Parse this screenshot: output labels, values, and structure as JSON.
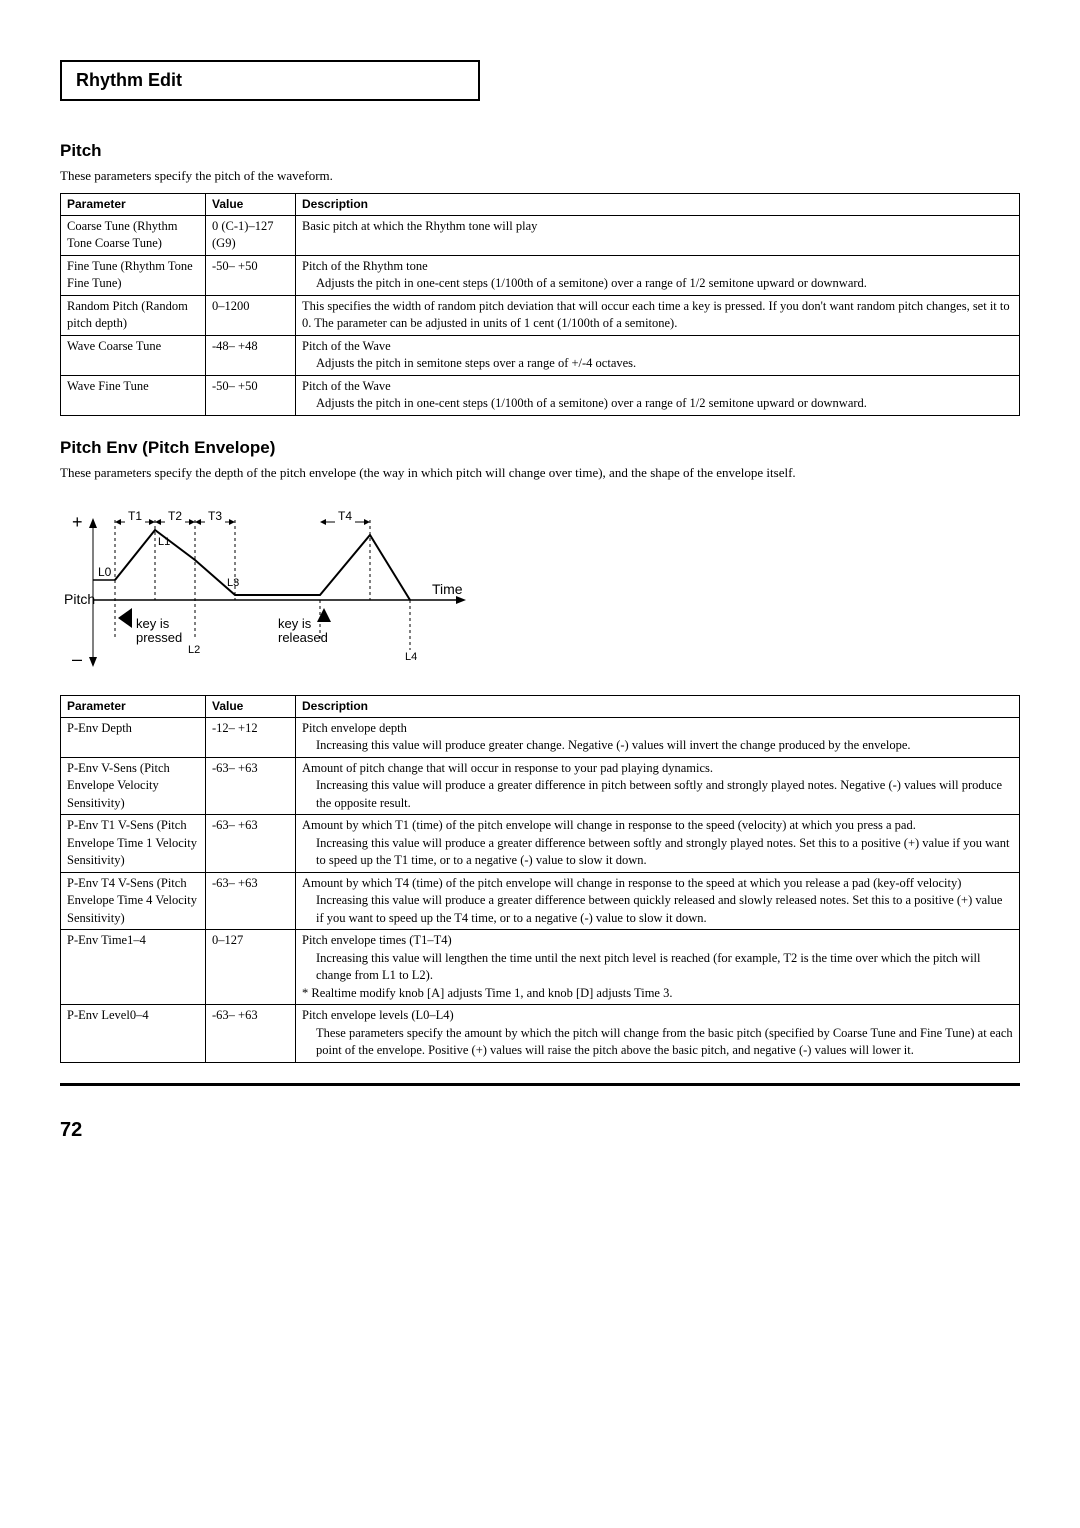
{
  "edit_box": {
    "title": "Rhythm Edit"
  },
  "pitch_section": {
    "heading": "Pitch",
    "intro": "These parameters specify the pitch of the waveform.",
    "table": {
      "headers": [
        "Parameter",
        "Value",
        "Description"
      ],
      "rows": [
        {
          "param": "Coarse Tune (Rhythm Tone Coarse Tune)",
          "value": "0 (C-1)–127 (G9)",
          "desc_main": "Basic pitch at which the Rhythm tone will play",
          "desc_sub": ""
        },
        {
          "param": "Fine Tune (Rhythm Tone Fine Tune)",
          "value": "-50– +50",
          "desc_main": "Pitch of the Rhythm tone",
          "desc_sub": "Adjusts the pitch in one-cent steps (1/100th of a semitone) over a range of 1/2 semitone upward or downward."
        },
        {
          "param": "Random Pitch (Random pitch depth)",
          "value": "0–1200",
          "desc_main": "This specifies the width of random pitch deviation that will occur each time a key is pressed. If you don't want random pitch changes, set it to 0. The parameter can be adjusted in units of 1 cent (1/100th of a semitone).",
          "desc_sub": ""
        },
        {
          "param": "Wave Coarse Tune",
          "value": "-48– +48",
          "desc_main": "Pitch of the Wave",
          "desc_sub": "Adjusts the pitch in semitone steps over a range of +/-4 octaves."
        },
        {
          "param": "Wave Fine Tune",
          "value": "-50– +50",
          "desc_main": "Pitch of the Wave",
          "desc_sub": "Adjusts the pitch in one-cent steps (1/100th of a semitone) over a range of 1/2 semitone upward or downward."
        }
      ]
    }
  },
  "pitchenv_section": {
    "heading": "Pitch Env (Pitch Envelope)",
    "intro": "These parameters specify the depth of the pitch envelope (the way in which pitch will change over time), and the shape of the envelope itself.",
    "diagram": {
      "plus": "+",
      "minus": "–",
      "L0": "L0",
      "L1": "L1",
      "L2": "L2",
      "L3": "L3",
      "L4": "L4",
      "T1": "T1",
      "T2": "T2",
      "T3": "T3",
      "T4": "T4",
      "pitch": "Pitch",
      "time": "Time",
      "key_press": "key is\npressed",
      "key_release": "key is\nreleased"
    },
    "table": {
      "headers": [
        "Parameter",
        "Value",
        "Description"
      ],
      "rows": [
        {
          "param": "P-Env Depth",
          "value": "-12– +12",
          "desc_main": "Pitch envelope depth",
          "desc_sub": "Increasing this value will produce greater change. Negative (-) values will invert the change produced by the envelope."
        },
        {
          "param": "P-Env V-Sens (Pitch Envelope Velocity Sensitivity)",
          "value": "-63– +63",
          "desc_main": "Amount of pitch change that will occur in response to your pad playing dynamics.",
          "desc_sub": "Increasing this value will produce a greater difference in pitch between softly and strongly played notes. Negative (-) values will produce the opposite result."
        },
        {
          "param": "P-Env T1 V-Sens (Pitch Envelope Time 1 Velocity Sensitivity)",
          "value": "-63– +63",
          "desc_main": "Amount by which T1 (time) of the pitch envelope will change in response to the speed (velocity) at which you press a pad.",
          "desc_sub": "Increasing this value will produce a greater difference between softly and strongly played notes. Set this to a positive (+) value if you want to speed up the T1 time, or to a negative (-) value to slow it down."
        },
        {
          "param": "P-Env T4 V-Sens (Pitch Envelope Time 4 Velocity Sensitivity)",
          "value": "-63– +63",
          "desc_main": "Amount by which T4 (time) of the pitch envelope will change in response to the speed at which you release a pad (key-off velocity)",
          "desc_sub": "Increasing this value will produce a greater difference between quickly released and slowly released notes. Set this to a positive (+) value if you want to speed up the T4 time, or to a negative (-) value to slow it down."
        },
        {
          "param": "P-Env Time1–4",
          "value": "0–127",
          "desc_main": "Pitch envelope times (T1–T4)",
          "desc_sub": "Increasing this value will lengthen the time until the next pitch level is reached (for example, T2 is the time over which the pitch will change from L1 to L2).",
          "note": "Realtime modify knob [A] adjusts Time 1, and knob [D] adjusts Time 3."
        },
        {
          "param": "P-Env Level0–4",
          "value": "-63– +63",
          "desc_main": "Pitch envelope levels (L0–L4)",
          "desc_sub": "These parameters specify the amount by which the pitch will change from the basic pitch (specified by Coarse Tune and Fine Tune) at each point of the envelope. Positive (+) values will raise the pitch above the basic pitch, and negative (-) values will lower it."
        }
      ]
    }
  },
  "page_number": "72"
}
